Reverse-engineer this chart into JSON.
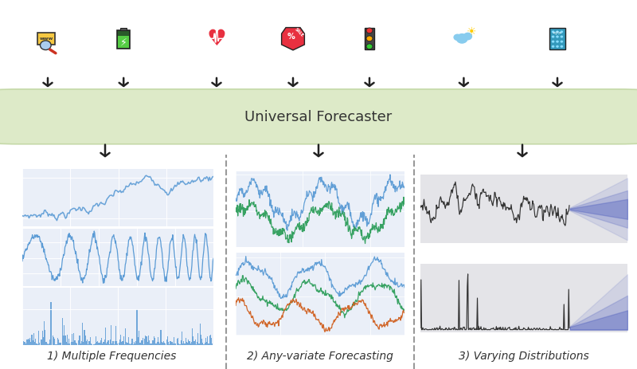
{
  "title": "Universal Forecaster",
  "title_fontsize": 13,
  "bg_color": "#ffffff",
  "box_color": "#ddeac8",
  "box_edge_color": "#c5d9a8",
  "plot_bg_color": "#eaeff8",
  "plot_bg_color2": "#e4e4e8",
  "label1": "1) Multiple Frequencies",
  "label2": "2) Any-variate Forecasting",
  "label3": "3) Varying Distributions",
  "label_fontsize": 10,
  "arrow_color": "#222222",
  "dashed_line_color": "#999999",
  "line_color_blue": "#5b9bd5",
  "line_color_green": "#2e9e5b",
  "line_color_orange": "#d06020",
  "line_color_dark": "#333333",
  "forecast_color": "#4455bb",
  "grid_color": "#ffffff"
}
